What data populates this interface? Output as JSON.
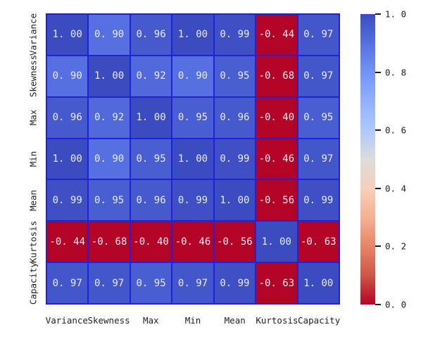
{
  "figure": {
    "background": "#ffffff",
    "kind": "correlation-heatmap"
  },
  "chart_data": {
    "type": "heatmap",
    "title": "",
    "xlabel": "",
    "ylabel": "",
    "x_categories": [
      "Variance",
      "Skewness",
      "Max",
      "Min",
      "Mean",
      "Kurtosis",
      "Capacity"
    ],
    "y_categories": [
      "Variance",
      "Skewness",
      "Max",
      "Min",
      "Mean",
      "Kurtosis",
      "Capacity"
    ],
    "matrix": [
      [
        1.0,
        0.9,
        0.96,
        1.0,
        0.99,
        -0.44,
        0.97
      ],
      [
        0.9,
        1.0,
        0.92,
        0.9,
        0.95,
        -0.68,
        0.97
      ],
      [
        0.96,
        0.92,
        1.0,
        0.95,
        0.96,
        -0.4,
        0.95
      ],
      [
        1.0,
        0.9,
        0.95,
        1.0,
        0.99,
        -0.46,
        0.97
      ],
      [
        0.99,
        0.95,
        0.96,
        0.99,
        1.0,
        -0.56,
        0.99
      ],
      [
        -0.44,
        -0.68,
        -0.4,
        -0.46,
        -0.56,
        1.0,
        -0.63
      ],
      [
        0.97,
        0.97,
        0.95,
        0.97,
        0.99,
        -0.63,
        1.0
      ]
    ],
    "value_decimals": 2,
    "vmin": 0.0,
    "vmax": 1.0,
    "grid_on": true,
    "annotated": true,
    "colorbar": {
      "position": "right",
      "tick_values": [
        1.0,
        0.8,
        0.6,
        0.4,
        0.2,
        0.0
      ],
      "tick_labels": [
        "1.0",
        "0.8",
        "0.6",
        "0.4",
        "0.2",
        "0.0"
      ]
    },
    "colormap": {
      "name": "coolwarm_r",
      "stops_top_to_bottom": [
        "#3b4cc0",
        "#5670e1",
        "#7393f6",
        "#91b1fe",
        "#afc8fd",
        "#dddcdc",
        "#f7cfbb",
        "#f4b192",
        "#e58567",
        "#cf5548",
        "#b40426"
      ]
    }
  },
  "colors": {
    "grid_line": "#2020e0",
    "cell_text": "#e9ecf7",
    "axis_text": "#212121",
    "colorbar_tick": "#1a1a1a",
    "background": "#ffffff",
    "max_blue": "#3b4cc0",
    "clamped_negative_red": "#b40426"
  }
}
